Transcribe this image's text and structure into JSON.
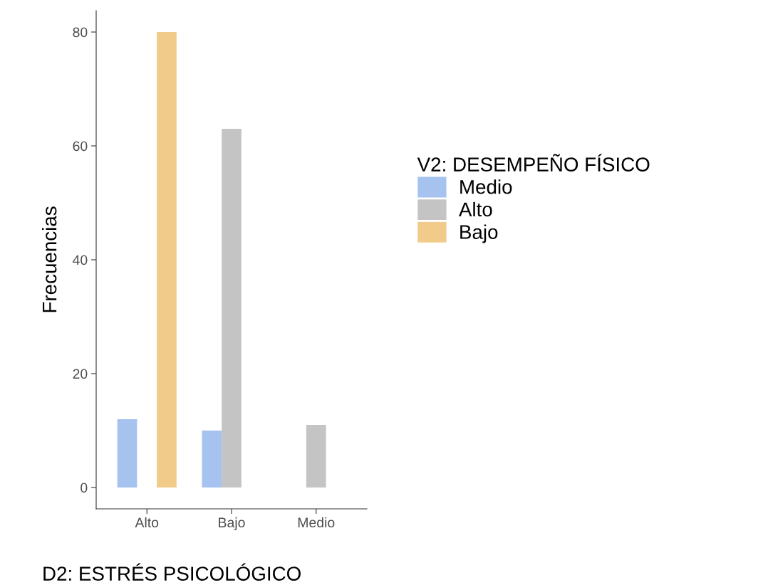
{
  "chart_data": {
    "type": "bar",
    "xlabel": "D2: ESTRÉS PSICOLÓGICO",
    "ylabel": "Frecuencias",
    "legend_title": "V2: DESEMPEÑO FÍSICO",
    "categories": [
      "Alto",
      "Bajo",
      "Medio"
    ],
    "series": [
      {
        "name": "Medio",
        "color": "#a6c3f0",
        "values": [
          12,
          10,
          null
        ]
      },
      {
        "name": "Alto",
        "color": "#c4c4c4",
        "values": [
          null,
          63,
          11
        ]
      },
      {
        "name": "Bajo",
        "color": "#f0cb89",
        "values": [
          80,
          null,
          null
        ]
      }
    ],
    "ylim": [
      -3.75,
      83.75
    ],
    "yticks": [
      0,
      20,
      40,
      60,
      80
    ],
    "grid": false,
    "legend": "right"
  }
}
